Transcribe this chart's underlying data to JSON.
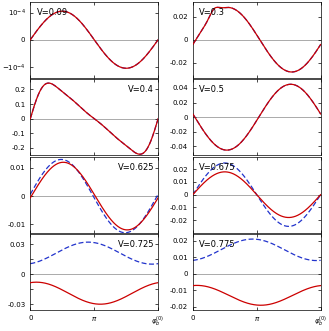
{
  "red_color": "#cc0000",
  "blue_color": "#2233cc",
  "panels": [
    {
      "V": 0.09,
      "row": 0,
      "col": 0,
      "ylim": [
        -0.00014,
        0.00014
      ],
      "yticks": [
        -0.0001,
        0,
        0.0001
      ],
      "ylabels": [
        "$-10^{-4}$",
        "0",
        "$10^{-4}$"
      ],
      "label_right": false
    },
    {
      "V": 0.3,
      "row": 0,
      "col": 1,
      "ylim": [
        -0.033,
        0.033
      ],
      "yticks": [
        -0.02,
        0,
        0.02
      ],
      "ylabels": [
        "-0.02",
        "0",
        "0.02"
      ],
      "label_right": false
    },
    {
      "V": 0.4,
      "row": 1,
      "col": 0,
      "ylim": [
        -0.25,
        0.27
      ],
      "yticks": [
        -0.2,
        -0.1,
        0,
        0.1,
        0.2
      ],
      "ylabels": [
        "-0.2",
        "-0.1",
        "0",
        "0.1",
        "0.2"
      ],
      "label_right": true
    },
    {
      "V": 0.5,
      "row": 1,
      "col": 1,
      "ylim": [
        -0.052,
        0.052
      ],
      "yticks": [
        -0.04,
        -0.02,
        0,
        0.02,
        0.04
      ],
      "ylabels": [
        "-0.04",
        "-0.02",
        "0",
        "0.02",
        "0.04"
      ],
      "label_right": false
    },
    {
      "V": 0.625,
      "row": 2,
      "col": 0,
      "ylim": [
        -0.013,
        0.014
      ],
      "yticks": [
        -0.01,
        0,
        0.01
      ],
      "ylabels": [
        "-0.01",
        "0",
        "0.01"
      ],
      "label_right": true
    },
    {
      "V": 0.675,
      "row": 2,
      "col": 1,
      "ylim": [
        -0.03,
        0.03
      ],
      "yticks": [
        -0.02,
        -0.01,
        0,
        0.01,
        0.02
      ],
      "ylabels": [
        "-0.02",
        "-0.01",
        "0",
        "0.01",
        "0.02"
      ],
      "label_right": false
    },
    {
      "V": 0.725,
      "row": 3,
      "col": 0,
      "ylim": [
        -0.036,
        0.04
      ],
      "yticks": [
        -0.03,
        -0.015,
        0,
        0.015,
        0.03
      ],
      "ylabels": [
        "-0.03",
        "",
        "0",
        "",
        "0.03"
      ],
      "label_right": true
    },
    {
      "V": 0.775,
      "row": 3,
      "col": 1,
      "ylim": [
        -0.022,
        0.024
      ],
      "yticks": [
        -0.02,
        -0.01,
        0,
        0.01,
        0.02
      ],
      "ylabels": [
        "-0.02",
        "-0.01",
        "0",
        "0.01",
        "0.02"
      ],
      "label_right": false
    }
  ]
}
